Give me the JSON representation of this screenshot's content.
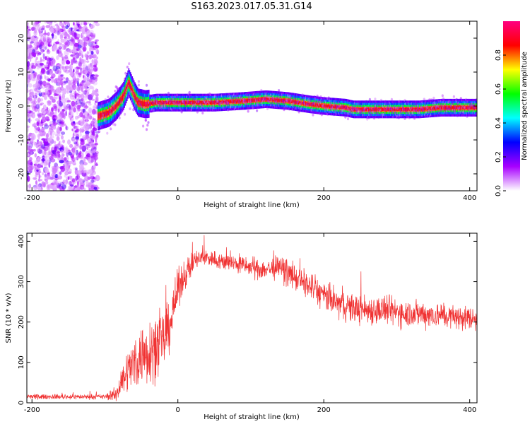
{
  "title": "S163.2023.017.05.31.G14",
  "chart_data": [
    {
      "type": "heatmap",
      "xlabel": "Height of straight line (km)",
      "ylabel": "Frequency (Hz)",
      "xlim": [
        -207,
        410
      ],
      "ylim": [
        -25,
        25
      ],
      "xticks": [
        -200,
        0,
        200,
        400
      ],
      "yticks": [
        -20,
        -10,
        0,
        10,
        20
      ],
      "colorbar": {
        "label": "Normalized spectral amplitude",
        "range": [
          0,
          1
        ],
        "ticks": [
          "0.0",
          "0.2",
          "0.4",
          "0.6",
          "0.8"
        ],
        "colormap": [
          "#ffffff",
          "#a800ff",
          "#0000ff",
          "#00ffff",
          "#00ff00",
          "#ffff00",
          "#ff0000",
          "#ff0080"
        ]
      },
      "ridge": {
        "x": [
          -110,
          -95,
          -85,
          -75,
          -68,
          -60,
          -55,
          -45,
          -30,
          0,
          50,
          90,
          120,
          150,
          180,
          200,
          230,
          240,
          300,
          330,
          360,
          410
        ],
        "y": [
          -3,
          -2,
          0,
          3,
          7,
          3,
          1,
          0.5,
          1,
          1,
          1,
          1.5,
          2,
          1.5,
          0.5,
          0,
          -0.5,
          -1,
          -1,
          -1,
          -0.5,
          -0.5
        ]
      },
      "noise_region_x": [
        -207,
        -110
      ]
    },
    {
      "type": "line",
      "xlabel": "Height of straight line (km)",
      "ylabel": "SNR (10 * v/v)",
      "xlim": [
        -207,
        410
      ],
      "ylim": [
        0,
        420
      ],
      "xticks": [
        -200,
        0,
        200,
        400
      ],
      "yticks": [
        0,
        100,
        200,
        300,
        400
      ],
      "series": [
        {
          "color": "#f03232",
          "x": [
            -207,
            -150,
            -100,
            -85,
            -70,
            -55,
            -40,
            -20,
            -10,
            0,
            10,
            25,
            40,
            60,
            80,
            100,
            120,
            140,
            160,
            180,
            200,
            220,
            240,
            260,
            280,
            300,
            320,
            340,
            360,
            380,
            400,
            410
          ],
          "y": [
            15,
            15,
            15,
            20,
            80,
            110,
            130,
            150,
            200,
            280,
            320,
            355,
            360,
            350,
            345,
            335,
            330,
            335,
            310,
            290,
            265,
            245,
            235,
            230,
            230,
            225,
            222,
            220,
            217,
            212,
            210,
            208
          ],
          "noise_amplitude": [
            5,
            5,
            5,
            15,
            40,
            60,
            70,
            60,
            50,
            40,
            30,
            20,
            18,
            18,
            18,
            20,
            22,
            25,
            25,
            28,
            30,
            30,
            30,
            30,
            30,
            30,
            28,
            28,
            25,
            25,
            25,
            25
          ]
        }
      ]
    }
  ]
}
